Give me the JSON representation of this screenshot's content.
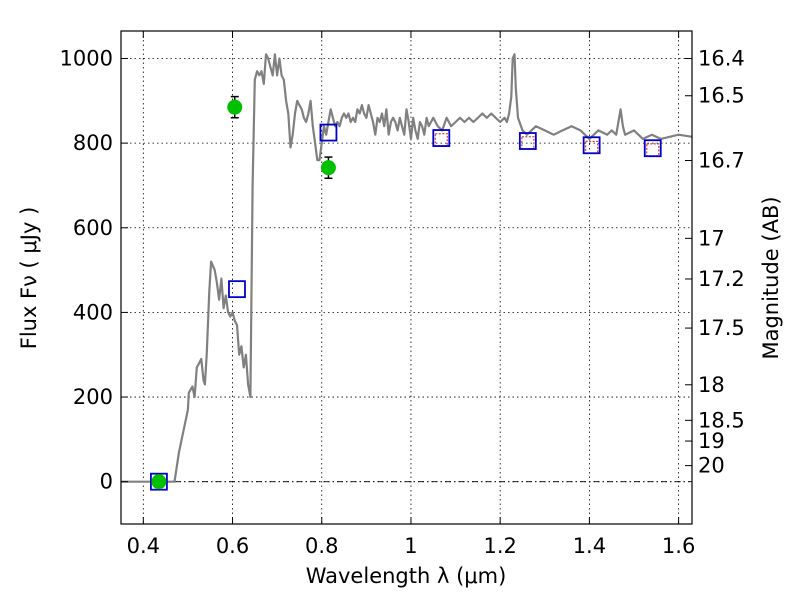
{
  "chart_data": {
    "type": "line",
    "xlabel": "Wavelength  λ (μm)",
    "ylabel": "Flux  Fν  ( μJy )",
    "ylabel_right": "Magnitude (AB)",
    "xlim": [
      0.35,
      1.63
    ],
    "ylim": [
      -100,
      1065
    ],
    "grid": true,
    "x_ticks": [
      0.4,
      0.6,
      0.8,
      1.0,
      1.2,
      1.4,
      1.6
    ],
    "x_tick_labels": [
      "0.4",
      "0.6",
      "0.8",
      "1",
      "1.2",
      "1.4",
      "1.6"
    ],
    "y_ticks": [
      0,
      200,
      400,
      600,
      800,
      1000
    ],
    "y_tick_labels": [
      "0",
      "200",
      "400",
      "600",
      "800",
      "1000"
    ],
    "right_ticks": [
      {
        "label": "16.4",
        "flux": 1000
      },
      {
        "label": "16.5",
        "flux": 912
      },
      {
        "label": "16.7",
        "flux": 759
      },
      {
        "label": "17",
        "flux": 575
      },
      {
        "label": "17.2",
        "flux": 479
      },
      {
        "label": "17.5",
        "flux": 363
      },
      {
        "label": "18",
        "flux": 229
      },
      {
        "label": "18.5",
        "flux": 145
      },
      {
        "label": "19",
        "flux": 96
      },
      {
        "label": "20",
        "flux": 38
      }
    ],
    "zero_line": 0,
    "series": [
      {
        "kind": "spectrum",
        "color": "#808080",
        "x": [
          0.35,
          0.47,
          0.48,
          0.5,
          0.502,
          0.51,
          0.515,
          0.52,
          0.525,
          0.53,
          0.535,
          0.538,
          0.542,
          0.548,
          0.552,
          0.56,
          0.565,
          0.57,
          0.575,
          0.58,
          0.585,
          0.59,
          0.595,
          0.6,
          0.605,
          0.61,
          0.615,
          0.62,
          0.625,
          0.63,
          0.635,
          0.64,
          0.645,
          0.65,
          0.655,
          0.66,
          0.665,
          0.67,
          0.675,
          0.68,
          0.685,
          0.69,
          0.695,
          0.7,
          0.705,
          0.71,
          0.715,
          0.72,
          0.725,
          0.73,
          0.735,
          0.74,
          0.745,
          0.75,
          0.755,
          0.76,
          0.765,
          0.77,
          0.775,
          0.78,
          0.785,
          0.79,
          0.795,
          0.8,
          0.805,
          0.81,
          0.815,
          0.82,
          0.825,
          0.83,
          0.835,
          0.84,
          0.845,
          0.85,
          0.855,
          0.86,
          0.865,
          0.87,
          0.875,
          0.88,
          0.885,
          0.89,
          0.895,
          0.9,
          0.905,
          0.91,
          0.915,
          0.92,
          0.925,
          0.93,
          0.935,
          0.94,
          0.945,
          0.95,
          0.955,
          0.96,
          0.965,
          0.97,
          0.975,
          0.98,
          0.985,
          0.99,
          0.995,
          1.0,
          1.005,
          1.01,
          1.015,
          1.02,
          1.025,
          1.03,
          1.035,
          1.04,
          1.045,
          1.05,
          1.06,
          1.07,
          1.08,
          1.085,
          1.09,
          1.1,
          1.11,
          1.12,
          1.13,
          1.14,
          1.15,
          1.16,
          1.17,
          1.18,
          1.19,
          1.2,
          1.21,
          1.215,
          1.22,
          1.225,
          1.228,
          1.232,
          1.235,
          1.24,
          1.25,
          1.26,
          1.28,
          1.3,
          1.32,
          1.34,
          1.36,
          1.38,
          1.4,
          1.42,
          1.44,
          1.45,
          1.46,
          1.465,
          1.47,
          1.475,
          1.48,
          1.5,
          1.52,
          1.54,
          1.56,
          1.58,
          1.6,
          1.63
        ],
        "y": [
          0,
          0,
          70,
          170,
          210,
          225,
          200,
          270,
          280,
          290,
          240,
          230,
          300,
          450,
          520,
          500,
          470,
          430,
          480,
          410,
          440,
          400,
          390,
          400,
          380,
          370,
          300,
          320,
          270,
          300,
          230,
          200,
          700,
          950,
          970,
          960,
          970,
          940,
          1010,
          1000,
          980,
          960,
          1010,
          960,
          1000,
          960,
          950,
          900,
          870,
          790,
          820,
          870,
          900,
          890,
          880,
          860,
          850,
          870,
          900,
          840,
          800,
          760,
          760,
          800,
          840,
          820,
          850,
          880,
          860,
          840,
          850,
          840,
          860,
          870,
          860,
          870,
          850,
          860,
          850,
          880,
          870,
          890,
          870,
          860,
          890,
          870,
          850,
          820,
          860,
          850,
          870,
          840,
          880,
          820,
          850,
          860,
          850,
          830,
          860,
          840,
          820,
          880,
          850,
          810,
          860,
          830,
          810,
          850,
          840,
          820,
          860,
          840,
          850,
          860,
          840,
          830,
          860,
          850,
          840,
          850,
          860,
          850,
          860,
          850,
          860,
          870,
          860,
          870,
          860,
          850,
          860,
          850,
          870,
          910,
          1000,
          1010,
          930,
          860,
          830,
          820,
          840,
          830,
          820,
          830,
          840,
          830,
          810,
          830,
          820,
          830,
          820,
          850,
          880,
          840,
          820,
          830,
          810,
          820,
          810,
          815,
          820,
          815
        ]
      },
      {
        "kind": "photometry-circles",
        "color": "#00c000",
        "points": [
          {
            "x": 0.435,
            "y": 0
          },
          {
            "x": 0.605,
            "y": 885,
            "err": 25
          },
          {
            "x": 0.815,
            "y": 742,
            "err": 25
          }
        ]
      },
      {
        "kind": "model-squares",
        "color": "#0000cc",
        "points": [
          {
            "x": 0.435,
            "y": 0
          },
          {
            "x": 0.61,
            "y": 455
          },
          {
            "x": 0.815,
            "y": 825
          },
          {
            "x": 1.068,
            "y": 812
          },
          {
            "x": 1.262,
            "y": 805
          },
          {
            "x": 1.405,
            "y": 795
          },
          {
            "x": 1.542,
            "y": 788
          }
        ]
      },
      {
        "kind": "observed-squares",
        "color": "#d04040",
        "points": [
          {
            "x": 1.068,
            "y": 808
          },
          {
            "x": 1.262,
            "y": 801
          },
          {
            "x": 1.405,
            "y": 790
          },
          {
            "x": 1.542,
            "y": 784
          }
        ]
      }
    ]
  }
}
